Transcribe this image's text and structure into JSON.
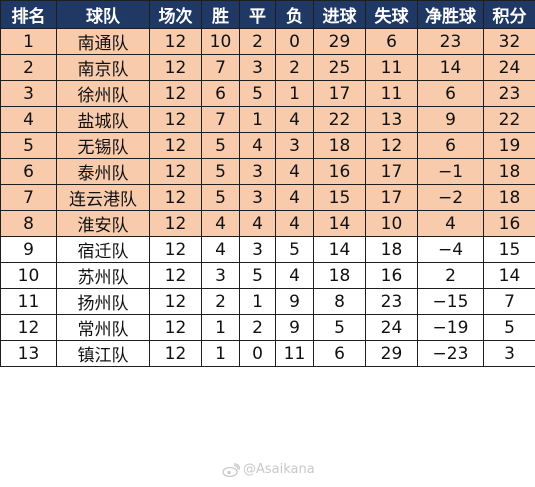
{
  "table": {
    "headers": [
      "排名",
      "球队",
      "场次",
      "胜",
      "平",
      "负",
      "进球",
      "失球",
      "净胜球",
      "积分"
    ],
    "rows": [
      {
        "rank": "1",
        "team": "南通队",
        "played": "12",
        "won": "10",
        "drawn": "2",
        "lost": "0",
        "gf": "29",
        "ga": "6",
        "gd": "23",
        "pts": "32"
      },
      {
        "rank": "2",
        "team": "南京队",
        "played": "12",
        "won": "7",
        "drawn": "3",
        "lost": "2",
        "gf": "25",
        "ga": "11",
        "gd": "14",
        "pts": "24"
      },
      {
        "rank": "3",
        "team": "徐州队",
        "played": "12",
        "won": "6",
        "drawn": "5",
        "lost": "1",
        "gf": "17",
        "ga": "11",
        "gd": "6",
        "pts": "23"
      },
      {
        "rank": "4",
        "team": "盐城队",
        "played": "12",
        "won": "7",
        "drawn": "1",
        "lost": "4",
        "gf": "22",
        "ga": "13",
        "gd": "9",
        "pts": "22"
      },
      {
        "rank": "5",
        "team": "无锡队",
        "played": "12",
        "won": "5",
        "drawn": "4",
        "lost": "3",
        "gf": "18",
        "ga": "12",
        "gd": "6",
        "pts": "19"
      },
      {
        "rank": "6",
        "team": "泰州队",
        "played": "12",
        "won": "5",
        "drawn": "3",
        "lost": "4",
        "gf": "16",
        "ga": "17",
        "gd": "−1",
        "pts": "18"
      },
      {
        "rank": "7",
        "team": "连云港队",
        "played": "12",
        "won": "5",
        "drawn": "3",
        "lost": "4",
        "gf": "15",
        "ga": "17",
        "gd": "−2",
        "pts": "18"
      },
      {
        "rank": "8",
        "team": "淮安队",
        "played": "12",
        "won": "4",
        "drawn": "4",
        "lost": "4",
        "gf": "14",
        "ga": "10",
        "gd": "4",
        "pts": "16"
      },
      {
        "rank": "9",
        "team": "宿迁队",
        "played": "12",
        "won": "4",
        "drawn": "3",
        "lost": "5",
        "gf": "14",
        "ga": "18",
        "gd": "−4",
        "pts": "15"
      },
      {
        "rank": "10",
        "team": "苏州队",
        "played": "12",
        "won": "3",
        "drawn": "5",
        "lost": "4",
        "gf": "18",
        "ga": "16",
        "gd": "2",
        "pts": "14"
      },
      {
        "rank": "11",
        "team": "扬州队",
        "played": "12",
        "won": "2",
        "drawn": "1",
        "lost": "9",
        "gf": "8",
        "ga": "23",
        "gd": "−15",
        "pts": "7"
      },
      {
        "rank": "12",
        "team": "常州队",
        "played": "12",
        "won": "1",
        "drawn": "2",
        "lost": "9",
        "gf": "5",
        "ga": "24",
        "gd": "−19",
        "pts": "5"
      },
      {
        "rank": "13",
        "team": "镇江队",
        "played": "12",
        "won": "1",
        "drawn": "0",
        "lost": "11",
        "gf": "6",
        "ga": "29",
        "gd": "−23",
        "pts": "3"
      }
    ]
  },
  "watermark": {
    "text": "@Asaikana",
    "icon": "weibo-icon"
  },
  "colors": {
    "header_bg": "#203864",
    "header_text": "#ffffff",
    "highlight_row_bg": "#f8cbad",
    "plain_row_bg": "#ffffff",
    "border": "#1f1f1f"
  }
}
